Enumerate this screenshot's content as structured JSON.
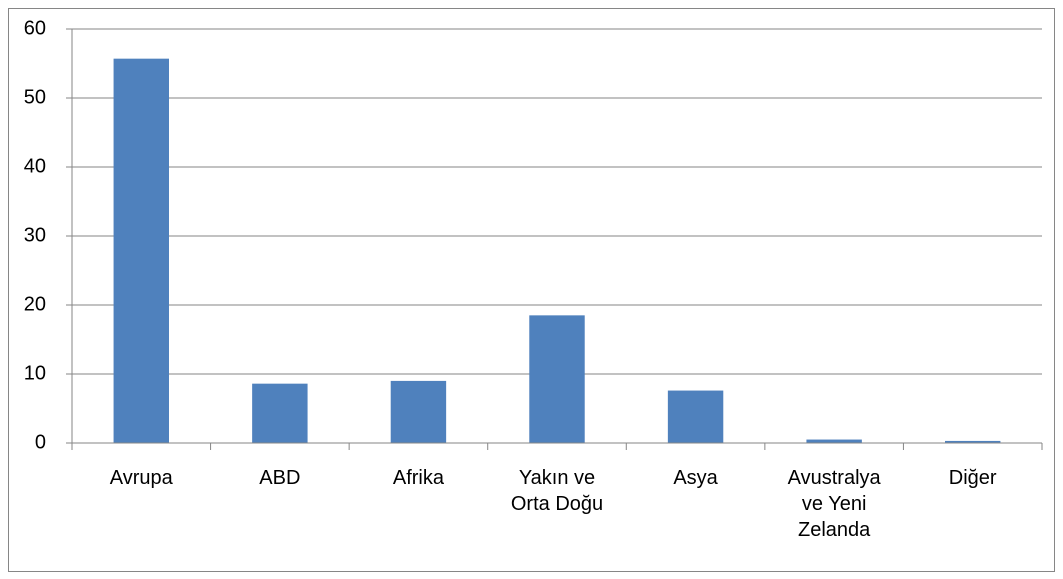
{
  "chart_data": {
    "type": "bar",
    "categories": [
      "Avrupa",
      "ABD",
      "Afrika",
      "Yakın ve Orta Doğu",
      "Asya",
      "Avustralya ve Yeni Zelanda",
      "Diğer"
    ],
    "values": [
      55.7,
      8.6,
      9.0,
      18.5,
      7.6,
      0.5,
      0.3
    ],
    "color": "#4f81bd",
    "ylim": [
      0,
      60
    ],
    "yticks": [
      0,
      10,
      20,
      30,
      40,
      50,
      60
    ],
    "grid": true
  }
}
